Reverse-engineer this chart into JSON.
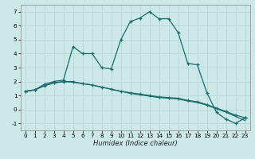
{
  "xlabel": "Humidex (Indice chaleur)",
  "background_color": "#cce8e8",
  "grid_color": "#b8d4d4",
  "line_color": "#1a6b6b",
  "xlim": [
    -0.5,
    23.5
  ],
  "ylim": [
    -1.5,
    7.5
  ],
  "xticks": [
    0,
    1,
    2,
    3,
    4,
    5,
    6,
    7,
    8,
    9,
    10,
    11,
    12,
    13,
    14,
    15,
    16,
    17,
    18,
    19,
    20,
    21,
    22,
    23
  ],
  "yticks": [
    -1,
    0,
    1,
    2,
    3,
    4,
    5,
    6,
    7
  ],
  "series1_x": [
    0,
    1,
    2,
    3,
    4,
    5,
    6,
    7,
    8,
    9,
    10,
    11,
    12,
    13,
    14,
    15,
    16,
    17,
    18,
    19,
    20,
    21,
    22,
    23
  ],
  "series1_y": [
    1.3,
    1.4,
    1.8,
    2.0,
    2.1,
    4.5,
    4.0,
    4.0,
    3.0,
    2.9,
    5.0,
    6.3,
    6.55,
    7.0,
    6.5,
    6.5,
    5.5,
    3.3,
    3.2,
    1.2,
    -0.2,
    -0.7,
    -1.0,
    -0.6
  ],
  "series2_x": [
    0,
    1,
    2,
    3,
    4,
    5,
    6,
    7,
    8,
    9,
    10,
    11,
    12,
    13,
    14,
    15,
    16,
    17,
    18,
    19,
    20,
    21,
    22,
    23
  ],
  "series2_y": [
    1.3,
    1.4,
    1.7,
    1.9,
    2.0,
    2.0,
    1.85,
    1.75,
    1.6,
    1.45,
    1.3,
    1.2,
    1.1,
    1.0,
    0.9,
    0.85,
    0.8,
    0.65,
    0.55,
    0.35,
    0.1,
    -0.15,
    -0.4,
    -0.6
  ],
  "series3_x": [
    0,
    1,
    2,
    3,
    4,
    5,
    6,
    7,
    8,
    9,
    10,
    11,
    12,
    13,
    14,
    15,
    16,
    17,
    18,
    19,
    20,
    21,
    22,
    23
  ],
  "series3_y": [
    1.3,
    1.4,
    1.7,
    1.9,
    2.0,
    1.95,
    1.85,
    1.75,
    1.6,
    1.45,
    1.3,
    1.15,
    1.05,
    0.95,
    0.85,
    0.8,
    0.75,
    0.6,
    0.5,
    0.3,
    0.05,
    -0.2,
    -0.5,
    -0.8
  ],
  "xlabel_fontsize": 6,
  "tick_fontsize": 5.2
}
